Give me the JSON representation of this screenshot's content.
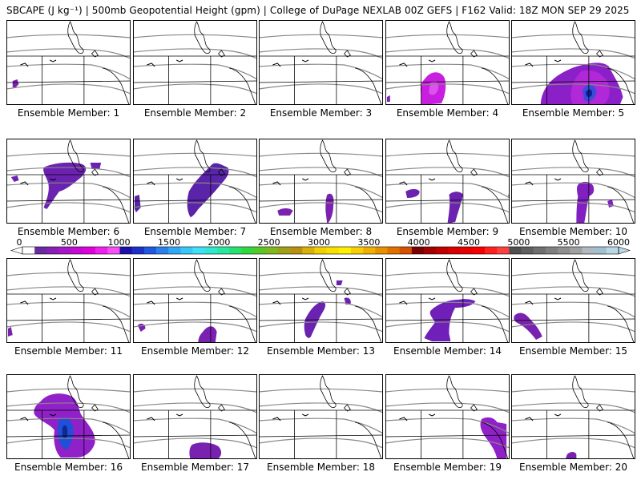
{
  "title": "SBCAPE (J kg⁻¹) | 500mb Geopotential Height (gpm) | College of DuPage NEXLAB 00Z GEFS | F162 Valid: 18Z MON SEP 29 2025",
  "colorbar": {
    "ticks": [
      "0",
      "500",
      "1000",
      "1500",
      "2000",
      "2500",
      "3000",
      "3500",
      "4000",
      "4500",
      "5000",
      "5500",
      "6000"
    ],
    "colors": [
      "#ffffff",
      "#6a2aa0",
      "#8a1fb8",
      "#a814c8",
      "#c40ad4",
      "#e000e0",
      "#f020f0",
      "#f850f8",
      "#1c10a8",
      "#1a30c8",
      "#2058e0",
      "#2a80ec",
      "#30a8f4",
      "#38c8f8",
      "#40e0f8",
      "#30e8d0",
      "#28e8a0",
      "#28e070",
      "#30d840",
      "#58c828",
      "#80b820",
      "#a0a018",
      "#b89010",
      "#d8b008",
      "#f0d000",
      "#f8e000",
      "#fff000",
      "#f8d000",
      "#f0b000",
      "#e89000",
      "#e07000",
      "#d85000",
      "#7a0000",
      "#a00000",
      "#c00000",
      "#d80000",
      "#e80000",
      "#f80000",
      "#ff2020",
      "#ff4040",
      "#505050",
      "#606060",
      "#707070",
      "#808080",
      "#909090",
      "#a0a0a0",
      "#b0b8c0",
      "#a0c0d0",
      "#b8d8e8"
    ]
  },
  "panels": [
    {
      "label": "Ensemble Member: 1"
    },
    {
      "label": "Ensemble Member: 2"
    },
    {
      "label": "Ensemble Member: 3"
    },
    {
      "label": "Ensemble Member: 4"
    },
    {
      "label": "Ensemble Member: 5"
    },
    {
      "label": "Ensemble Member: 6"
    },
    {
      "label": "Ensemble Member: 7"
    },
    {
      "label": "Ensemble Member: 8"
    },
    {
      "label": "Ensemble Member: 9"
    },
    {
      "label": "Ensemble Member: 10"
    },
    {
      "label": "Ensemble Member: 11"
    },
    {
      "label": "Ensemble Member: 12"
    },
    {
      "label": "Ensemble Member: 13"
    },
    {
      "label": "Ensemble Member: 14"
    },
    {
      "label": "Ensemble Member: 15"
    },
    {
      "label": "Ensemble Member: 16"
    },
    {
      "label": "Ensemble Member: 17"
    },
    {
      "label": "Ensemble Member: 18"
    },
    {
      "label": "Ensemble Member: 19"
    },
    {
      "label": "Ensemble Member: 20"
    }
  ]
}
